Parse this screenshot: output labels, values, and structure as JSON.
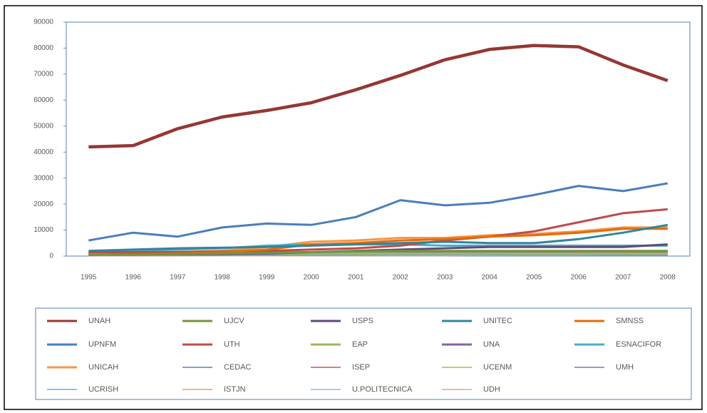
{
  "chart_data": {
    "type": "line",
    "categories": [
      "1995",
      "1996",
      "1997",
      "1998",
      "1999",
      "2000",
      "2001",
      "2002",
      "2003",
      "2004",
      "2005",
      "2006",
      "2007",
      "2008"
    ],
    "ylim": [
      0,
      90000
    ],
    "yticks": [
      0,
      10000,
      20000,
      30000,
      40000,
      50000,
      60000,
      70000,
      80000,
      90000
    ],
    "legend": "bottom",
    "series": [
      {
        "name": "UNAH",
        "color": "#953735",
        "values": [
          42000,
          42500,
          49000,
          53500,
          56000,
          59000,
          64000,
          69500,
          75500,
          79500,
          81000,
          80500,
          73500,
          67500
        ]
      },
      {
        "name": "UJCV",
        "color": "#77933c",
        "values": [
          500,
          600,
          800,
          1000,
          1200,
          1500,
          1800,
          2000,
          2000,
          2000,
          2000,
          2000,
          2000,
          2000
        ]
      },
      {
        "name": "USPS",
        "color": "#604a7b",
        "values": [
          500,
          600,
          700,
          800,
          1000,
          1500,
          2000,
          2500,
          3000,
          3500,
          3500,
          3500,
          3500,
          4500
        ]
      },
      {
        "name": "UNITEC",
        "color": "#31859c",
        "values": [
          2000,
          2500,
          3000,
          3200,
          3500,
          4000,
          4500,
          5000,
          5500,
          5000,
          5000,
          6500,
          9000,
          12000
        ]
      },
      {
        "name": "SMNSS",
        "color": "#e46c0a",
        "values": [
          500,
          800,
          1000,
          1500,
          2500,
          4500,
          5000,
          6000,
          6500,
          7500,
          8000,
          9000,
          10500,
          10500
        ]
      },
      {
        "name": "UPNFM",
        "color": "#4a7ebb",
        "values": [
          6000,
          9000,
          7500,
          11000,
          12500,
          12000,
          15000,
          21500,
          19500,
          20500,
          23500,
          27000,
          25000,
          28000
        ]
      },
      {
        "name": "UTH",
        "color": "#be4b48",
        "values": [
          1500,
          1500,
          1600,
          1800,
          2000,
          2500,
          3000,
          4000,
          6000,
          7500,
          9500,
          13000,
          16500,
          18000
        ]
      },
      {
        "name": "EAP",
        "color": "#9bbb59",
        "values": [
          800,
          900,
          1000,
          1000,
          1000,
          1000,
          1000,
          1000,
          1000,
          1000,
          1000,
          1000,
          1000,
          1000
        ]
      },
      {
        "name": "UNA",
        "color": "#8064a2",
        "values": [
          1000,
          1100,
          1200,
          1300,
          1400,
          1500,
          1500,
          1500,
          1500,
          1500,
          1500,
          1500,
          1500,
          1500
        ]
      },
      {
        "name": "ESNACIFOR",
        "color": "#4bacc6",
        "values": [
          1500,
          2000,
          2500,
          3000,
          4000,
          4500,
          4500,
          4500,
          4000,
          4000,
          4000,
          4000,
          4000,
          4000
        ]
      },
      {
        "name": "UNICAH",
        "color": "#f79646",
        "values": [
          1000,
          1200,
          1500,
          2000,
          3500,
          5500,
          6000,
          7000,
          7000,
          8000,
          8500,
          9500,
          11000,
          11000
        ]
      },
      {
        "name": "CEDAC",
        "color": "#7e9fd0",
        "values": [
          300,
          300,
          300,
          400,
          400,
          400,
          500,
          500,
          500,
          500,
          600,
          600,
          600,
          600
        ]
      },
      {
        "name": "ISEP",
        "color": "#d8807e",
        "values": [
          200,
          200,
          200,
          300,
          300,
          300,
          300,
          400,
          400,
          400,
          400,
          400,
          400,
          400
        ]
      },
      {
        "name": "UCENM",
        "color": "#b6d07f",
        "values": [
          200,
          200,
          300,
          300,
          400,
          500,
          600,
          700,
          800,
          900,
          1000,
          1000,
          1100,
          1200
        ]
      },
      {
        "name": "UMH",
        "color": "#a694c4",
        "values": [
          100,
          200,
          300,
          400,
          500,
          600,
          700,
          800,
          900,
          1000,
          1200,
          1500,
          1800,
          2000
        ]
      },
      {
        "name": "UCRISH",
        "color": "#83c6d8",
        "values": [
          100,
          100,
          200,
          200,
          300,
          300,
          400,
          400,
          500,
          500,
          600,
          600,
          700,
          700
        ]
      },
      {
        "name": "ISTJN",
        "color": "#f9b27f",
        "values": [
          100,
          100,
          100,
          200,
          200,
          200,
          300,
          300,
          300,
          400,
          400,
          400,
          500,
          500
        ]
      },
      {
        "name": "U.POLITECNICA",
        "color": "#b9c6e2",
        "values": [
          100,
          100,
          100,
          100,
          200,
          200,
          200,
          300,
          300,
          300,
          400,
          500,
          600,
          700
        ]
      },
      {
        "name": "UDH",
        "color": "#e9b9b8",
        "values": [
          100,
          100,
          100,
          100,
          100,
          200,
          200,
          200,
          200,
          300,
          300,
          300,
          400,
          400
        ]
      }
    ]
  }
}
